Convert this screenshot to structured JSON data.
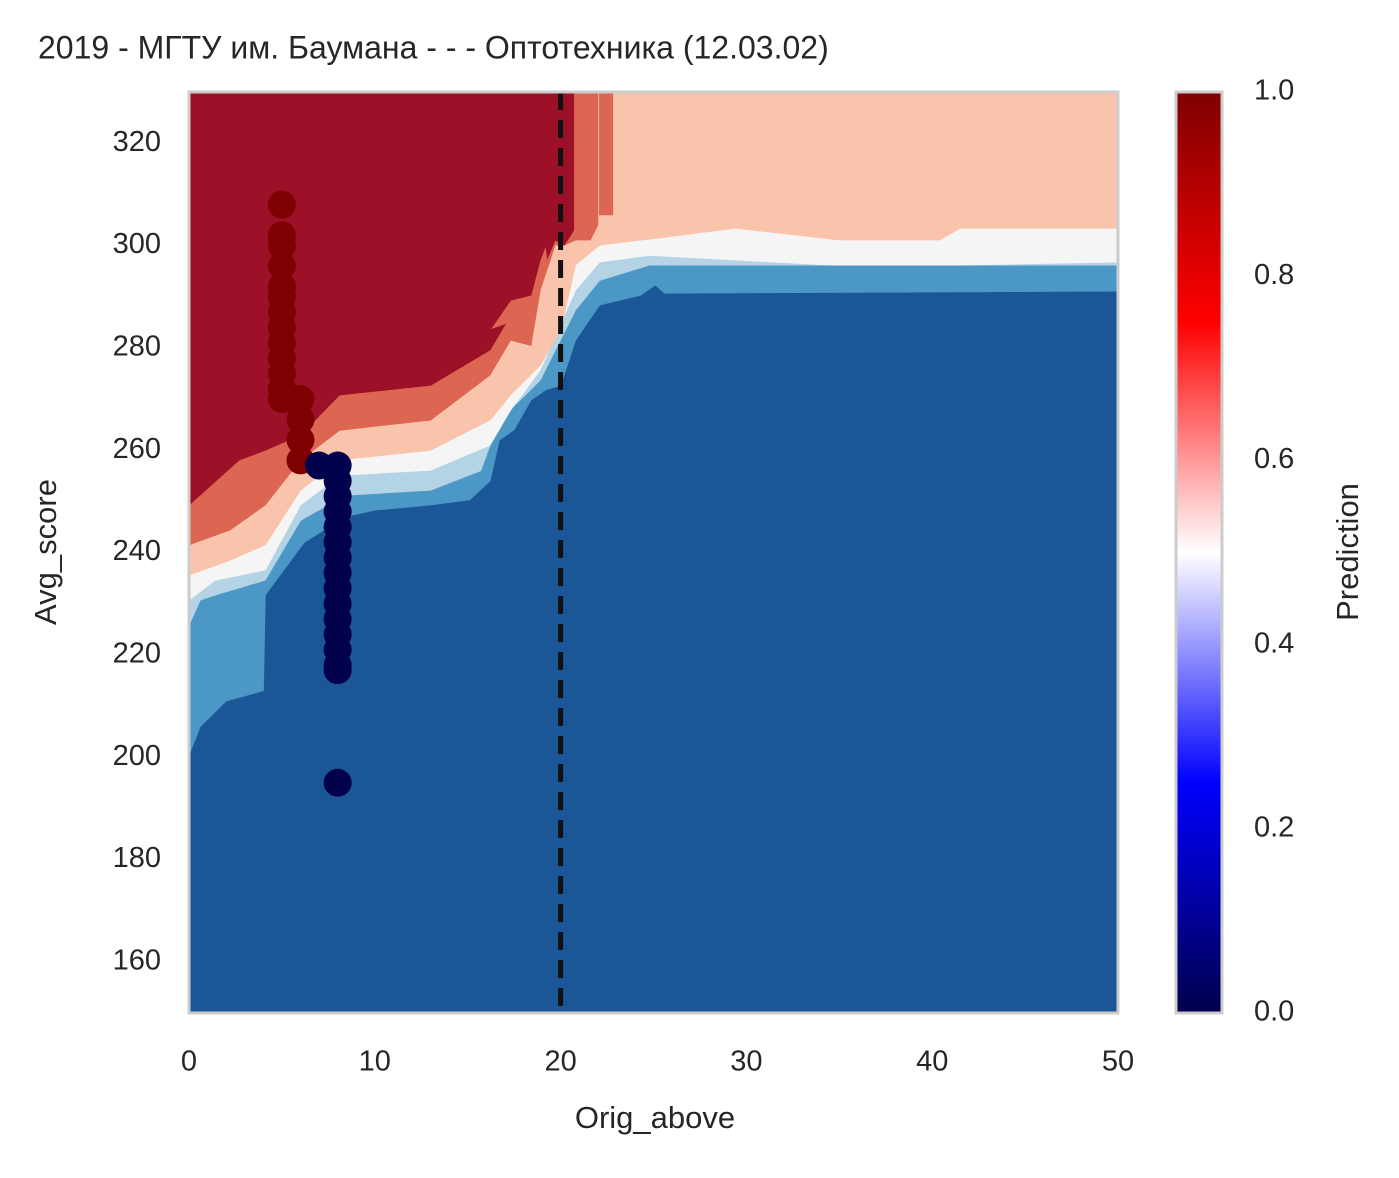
{
  "chart_data": {
    "type": "contour",
    "title": "2019 - МГТУ им. Баумана - - - Оптотехника (12.03.02)",
    "xlabel": "Orig_above",
    "ylabel": "Avg_score",
    "xlim": [
      0,
      50
    ],
    "ylim": [
      150,
      330
    ],
    "xticks": [
      0,
      10,
      20,
      30,
      40,
      50
    ],
    "yticks": [
      160,
      180,
      200,
      220,
      240,
      260,
      280,
      300,
      320
    ],
    "regions": [
      {
        "color": "#1b5796",
        "x": [
          0,
          50
        ],
        "y": [
          150,
          150
        ]
      },
      {
        "color": "#4b97c6",
        "x": [
          0,
          0.6,
          2.0,
          4.0,
          4.1,
          6.2,
          8.4,
          10.0,
          13.0,
          15.1,
          16.2,
          16.7,
          17.5,
          18.4,
          19.2,
          20.0,
          20.8,
          22.1,
          24.3,
          25.1,
          25.6,
          50
        ],
        "y": [
          200.4,
          206,
          211,
          213,
          231.7,
          242,
          247,
          248.3,
          249.3,
          250.3,
          254,
          262,
          264,
          269.8,
          271.8,
          272.7,
          281.5,
          288.4,
          290.3,
          292.3,
          290.7,
          291.1
        ]
      },
      {
        "color": "#b4d4e6",
        "x": [
          0,
          0.6,
          1.4,
          4.1,
          6.0,
          8.4,
          13.0,
          15.7,
          16.7,
          18.1,
          18.9,
          20.8,
          22.1,
          24.8,
          50
        ],
        "y": [
          225.8,
          230.7,
          231.7,
          234.6,
          246.3,
          251.2,
          252.2,
          256,
          265.9,
          270.8,
          273.7,
          287.4,
          293.2,
          296.2,
          296.2
        ]
      },
      {
        "color": "#f5f5f5",
        "x": [
          0,
          1.4,
          4.1,
          6.0,
          8.1,
          13.0,
          16.2,
          17.3,
          18.9,
          20.8,
          22.1,
          24.8,
          34.5,
          41.5,
          50
        ],
        "y": [
          230.7,
          234.6,
          236.6,
          249.3,
          255.1,
          256.1,
          261,
          267.8,
          275.7,
          291.3,
          296.8,
          298.1,
          296.2,
          296.2,
          296.8
        ]
      },
      {
        "color": "#f9c4ab",
        "x": [
          0,
          2.2,
          4.1,
          6.0,
          8.1,
          13.0,
          16.2,
          17.3,
          18.9,
          20.0,
          20.8,
          22.1,
          25.3,
          29.4,
          35.0,
          40.4,
          41.5,
          50
        ],
        "y": [
          235.6,
          238.5,
          241.5,
          252.2,
          258.1,
          260,
          265.9,
          270.8,
          276.6,
          283.5,
          296.2,
          300.1,
          301.5,
          303.4,
          301.1,
          301.1,
          303.4,
          303.4
        ]
      },
      {
        "color": "#dc6652",
        "x": [
          0,
          2.2,
          4.1,
          6.0,
          8.1,
          13.0,
          16.2,
          17.3,
          18.4,
          18.9,
          19.7,
          20.2,
          20.8,
          21.6,
          22.0,
          22.0
        ],
        "y": [
          241.5,
          244.4,
          249.3,
          258.1,
          263.9,
          265.9,
          274.7,
          281.5,
          280.5,
          291.3,
          300.1,
          300.1,
          301.1,
          301.1,
          304,
          330
        ]
      },
      {
        "color": "#dc6652",
        "x": [
          22.1,
          22.1,
          22.8,
          22.8
        ],
        "y": [
          330,
          306,
          306,
          330
        ]
      },
      {
        "color": "#9c1127",
        "x": [
          0,
          2.7,
          4.1,
          6.0,
          8.1,
          13.0,
          16.2,
          17.0,
          16.2,
          17.3,
          18.4,
          18.9,
          19.2,
          19.3,
          19.7,
          20.2,
          20.7,
          20.7
        ],
        "y": [
          249.3,
          258.1,
          260,
          263,
          270.8,
          272.7,
          279.6,
          284.5,
          283.5,
          289.3,
          290.3,
          297.2,
          300.1,
          297.6,
          301.1,
          300.1,
          303,
          330
        ]
      }
    ],
    "series": [
      {
        "color": "#7f0000",
        "x": [
          5,
          5,
          5,
          5,
          5,
          5,
          5,
          5,
          5,
          5,
          5,
          5,
          5,
          6,
          6,
          6,
          6
        ],
        "y": [
          308,
          302,
          300,
          296,
          292,
          290,
          287,
          284,
          281,
          278,
          275,
          272,
          270,
          270,
          266,
          262,
          258
        ]
      },
      {
        "color": "#00004c",
        "x": [
          7,
          8,
          8,
          8,
          8,
          8,
          8,
          8,
          8,
          8,
          8,
          8,
          8,
          8,
          8,
          8,
          8
        ],
        "y": [
          257,
          257,
          254,
          251,
          248,
          245,
          242,
          239,
          236,
          233,
          230,
          227,
          224,
          221,
          218,
          217,
          195
        ]
      }
    ],
    "vline": 20,
    "vline_color": "#111111",
    "colorbar": {
      "label": "Prediction",
      "lim": [
        0,
        1
      ],
      "ticks": [
        {
          "value": 0,
          "label": "0.0"
        },
        0.2,
        0.4,
        0.6,
        0.8,
        {
          "value": 1,
          "label": "1.0"
        }
      ],
      "colors": [
        "#00004c",
        "#0000ff",
        "#ffffff",
        "#ff0000",
        "#7f0000"
      ]
    }
  }
}
